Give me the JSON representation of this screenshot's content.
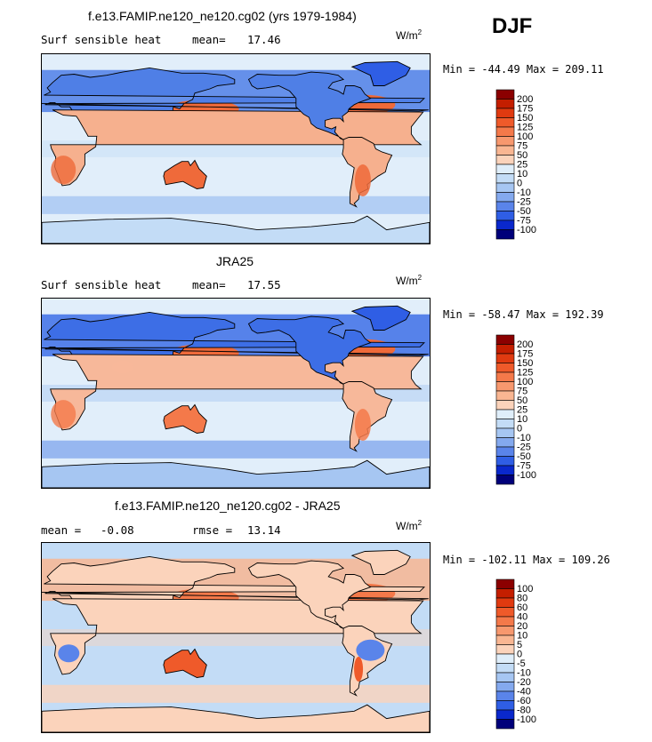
{
  "season": "DJF",
  "unit_base": "W/m",
  "unit_exp": "2",
  "panels": [
    {
      "id": "model",
      "title": "f.e13.FAMIP.ne120_ne120.cg02 (yrs 1979-1984)",
      "left_label": "Surf sensible heat",
      "stat_label": "mean=",
      "stat_value": "17.46",
      "stat2_label": "",
      "stat2_value": "",
      "minmax": "Min = -44.49  Max = 209.11"
    },
    {
      "id": "obs",
      "title": "JRA25",
      "left_label": "Surf sensible heat",
      "stat_label": "mean=",
      "stat_value": "17.55",
      "stat2_label": "",
      "stat2_value": "",
      "minmax": "Min = -58.47  Max = 192.39"
    },
    {
      "id": "diff",
      "title": "f.e13.FAMIP.ne120_ne120.cg02 - JRA25",
      "left_label": "",
      "stat_label": "mean =",
      "stat_value": "-0.08",
      "stat2_label": "rmse =",
      "stat2_value": "13.14",
      "minmax": "Min = -102.11  Max = 109.26"
    }
  ],
  "chart_data": [
    {
      "type": "heatmap",
      "title": "f.e13.FAMIP.ne120_ne120.cg02 (yrs 1979-1984)",
      "variable": "Surf sensible heat",
      "mean": 17.46,
      "min": -44.49,
      "max": 209.11,
      "colorbar_levels": [
        200,
        175,
        150,
        125,
        100,
        75,
        50,
        25,
        10,
        0,
        -10,
        -25,
        -50,
        -75,
        -100
      ],
      "colors": [
        "#8b0000",
        "#c41e00",
        "#e03a10",
        "#ef5a2a",
        "#f4794a",
        "#f7986e",
        "#f9b692",
        "#fbd3bb",
        "#dfeefa",
        "#c3dcf6",
        "#a6c6f2",
        "#84a9ee",
        "#5a84ea",
        "#2f5ee5",
        "#0a28cc",
        "#00007a"
      ]
    },
    {
      "type": "heatmap",
      "title": "JRA25",
      "variable": "Surf sensible heat",
      "mean": 17.55,
      "min": -58.47,
      "max": 192.39,
      "colorbar_levels": [
        200,
        175,
        150,
        125,
        100,
        75,
        50,
        25,
        10,
        0,
        -10,
        -25,
        -50,
        -75,
        -100
      ],
      "colors": [
        "#8b0000",
        "#c41e00",
        "#e03a10",
        "#ef5a2a",
        "#f4794a",
        "#f7986e",
        "#f9b692",
        "#fbd3bb",
        "#dfeefa",
        "#c3dcf6",
        "#a6c6f2",
        "#84a9ee",
        "#5a84ea",
        "#2f5ee5",
        "#0a28cc",
        "#00007a"
      ]
    },
    {
      "type": "heatmap",
      "title": "f.e13.FAMIP.ne120_ne120.cg02 - JRA25",
      "mean": -0.08,
      "rmse": 13.14,
      "min": -102.11,
      "max": 109.26,
      "colorbar_levels": [
        100,
        80,
        60,
        40,
        20,
        10,
        5,
        0,
        -5,
        -10,
        -20,
        -40,
        -60,
        -80,
        -100
      ],
      "colors": [
        "#8b0000",
        "#c41e00",
        "#e03a10",
        "#ef5a2a",
        "#f4794a",
        "#f7986e",
        "#f9b692",
        "#fbd3bb",
        "#dfeefa",
        "#c3dcf6",
        "#a6c6f2",
        "#84a9ee",
        "#5a84ea",
        "#2f5ee5",
        "#0a28cc",
        "#00007a"
      ]
    }
  ]
}
